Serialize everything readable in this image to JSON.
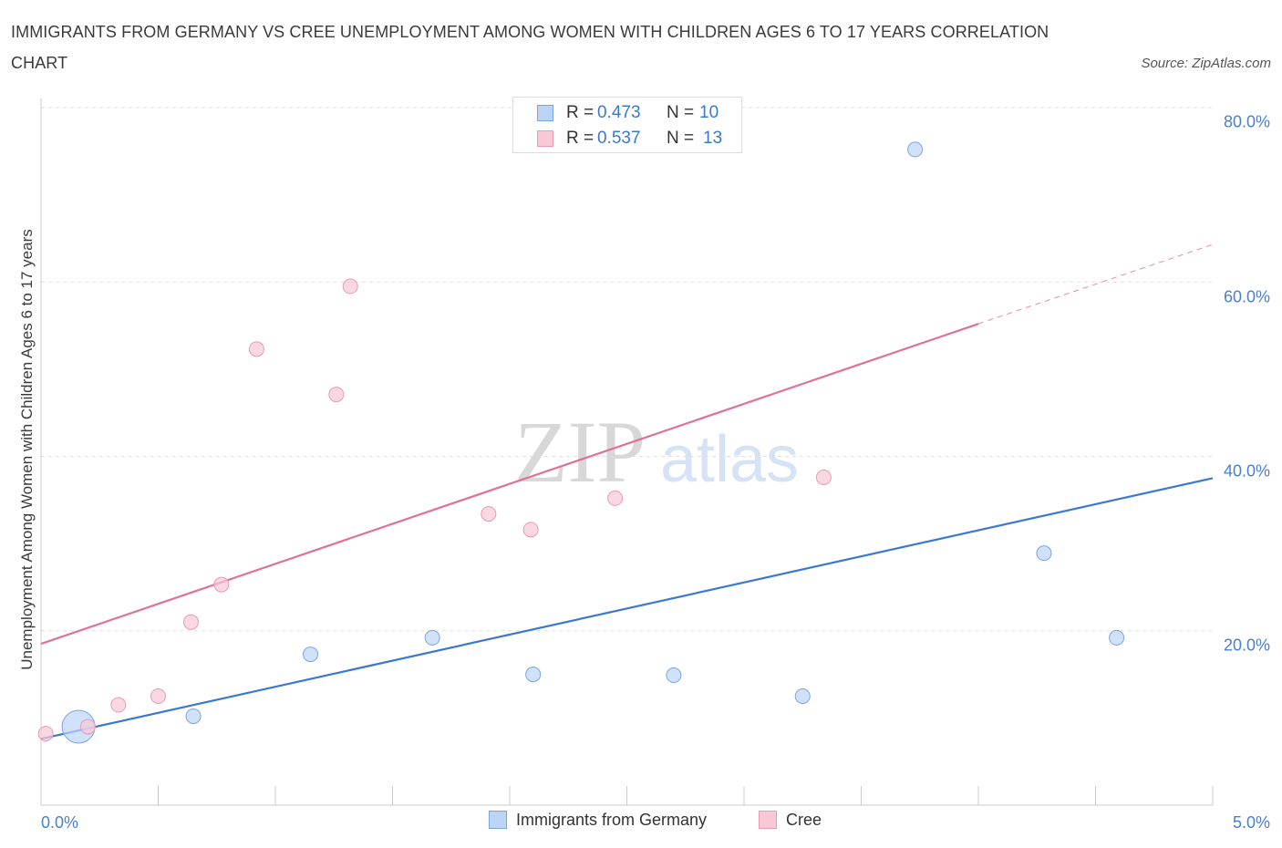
{
  "title": "IMMIGRANTS FROM GERMANY VS CREE UNEMPLOYMENT AMONG WOMEN WITH CHILDREN AGES 6 TO 17 YEARS CORRELATION CHART",
  "source": "Source: ZipAtlas.com",
  "watermark": {
    "zip": "ZIP",
    "atlas": "atlas"
  },
  "colors": {
    "blue": "#3a78d4",
    "blue_fill": "#bcd4f6",
    "pink": "#e0709a",
    "pink_fill": "#f8c8d6",
    "grid": "#dddddd",
    "axis_text": "#4a7fd0"
  },
  "legend": {
    "r_label": "R =",
    "n_label": "N =",
    "series": [
      {
        "name": "Immigrants from Germany",
        "r": "0.473",
        "n": "10"
      },
      {
        "name": "Cree",
        "r": "0.537",
        "n": "13"
      }
    ]
  },
  "chart_data": {
    "type": "scatter",
    "title": "IMMIGRANTS FROM GERMANY VS CREE UNEMPLOYMENT AMONG WOMEN WITH CHILDREN AGES 6 TO 17 YEARS CORRELATION CHART",
    "xlabel": "",
    "ylabel": "Unemployment Among Women with Children Ages 6 to 17 years",
    "xlim": [
      0,
      5
    ],
    "ylim": [
      0,
      80
    ],
    "x_tick_labels": [
      "0.0%",
      "5.0%"
    ],
    "y_ticks": [
      20,
      40,
      60,
      80
    ],
    "y_tick_labels": [
      "20.0%",
      "40.0%",
      "60.0%",
      "80.0%"
    ],
    "grid": true,
    "legend_position": "top-center",
    "series": [
      {
        "name": "Immigrants from Germany",
        "color": "#3a78d4",
        "points": [
          {
            "x": 0.16,
            "y": 9.0,
            "big": true
          },
          {
            "x": 0.65,
            "y": 10.2
          },
          {
            "x": 1.15,
            "y": 17.3
          },
          {
            "x": 1.67,
            "y": 19.2
          },
          {
            "x": 2.1,
            "y": 15.0
          },
          {
            "x": 2.7,
            "y": 14.9
          },
          {
            "x": 3.25,
            "y": 12.5
          },
          {
            "x": 3.73,
            "y": 75.2
          },
          {
            "x": 4.28,
            "y": 28.9
          },
          {
            "x": 4.59,
            "y": 19.2
          }
        ],
        "trend": {
          "x0": 0,
          "y0": 7.6,
          "x1": 5,
          "y1": 37.5
        }
      },
      {
        "name": "Cree",
        "color": "#e0709a",
        "points": [
          {
            "x": 0.02,
            "y": 8.2
          },
          {
            "x": 0.2,
            "y": 9.0
          },
          {
            "x": 0.33,
            "y": 11.5
          },
          {
            "x": 0.5,
            "y": 12.5
          },
          {
            "x": 0.64,
            "y": 21.0
          },
          {
            "x": 0.77,
            "y": 25.3
          },
          {
            "x": 0.92,
            "y": 52.3
          },
          {
            "x": 1.26,
            "y": 47.1
          },
          {
            "x": 1.32,
            "y": 59.5
          },
          {
            "x": 1.91,
            "y": 33.4
          },
          {
            "x": 2.09,
            "y": 31.6
          },
          {
            "x": 2.45,
            "y": 35.2
          },
          {
            "x": 3.34,
            "y": 37.6
          }
        ],
        "trend": {
          "x0": 0,
          "y0": 18.5,
          "x1": 4.0,
          "y1": 55.2,
          "dash_to_x": 5,
          "dash_to_y": 64.3
        }
      }
    ]
  }
}
